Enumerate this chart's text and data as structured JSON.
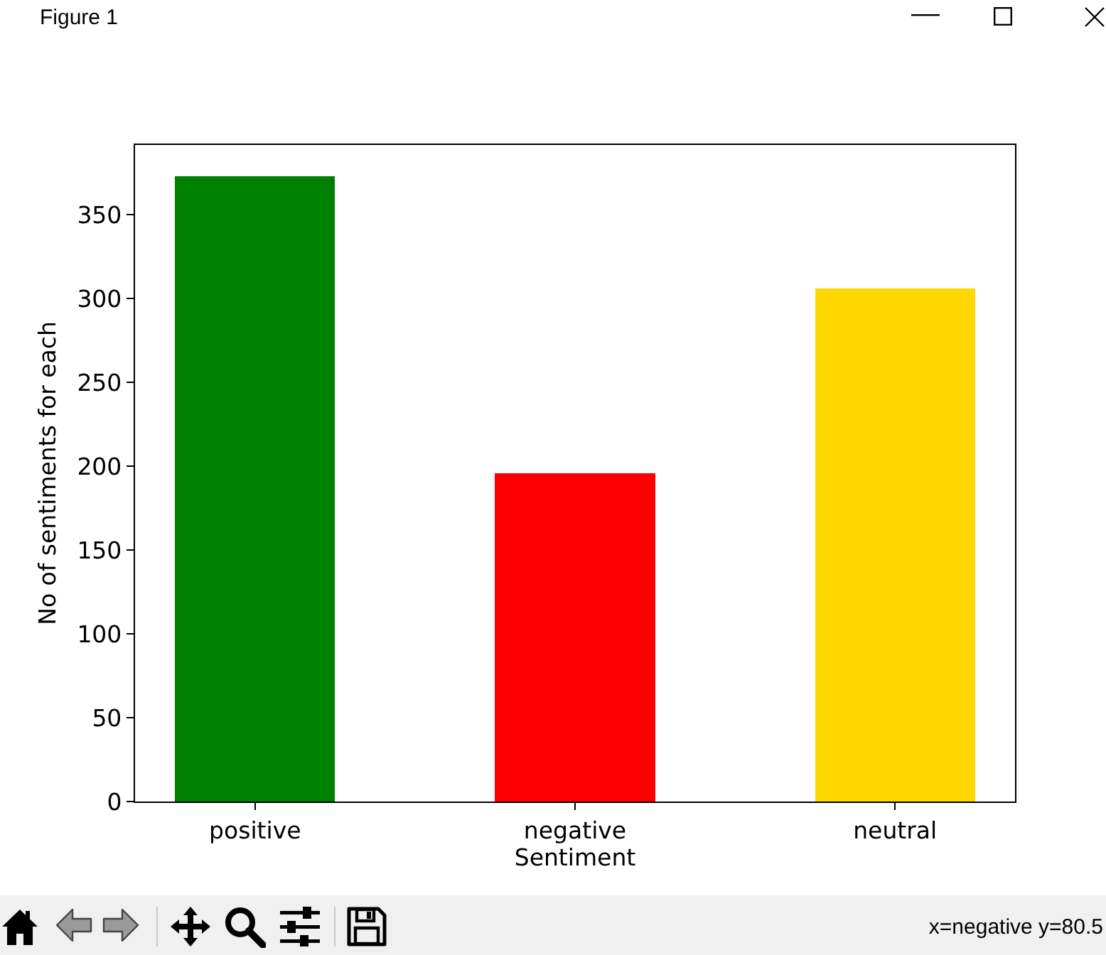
{
  "chart_data": {
    "type": "bar",
    "xlabel": "Sentiment",
    "ylabel": "No of sentiments for each",
    "categories": [
      "positive",
      "negative",
      "neutral"
    ],
    "values": [
      373,
      196,
      306
    ],
    "colors": [
      "#008000",
      "#ff0000",
      "#ffd700"
    ],
    "ylim": [
      0,
      391.65
    ],
    "yticks": [
      0,
      50,
      100,
      150,
      200,
      250,
      300,
      350
    ],
    "annotations": [
      "Figure 1",
      "x=negative y=80.5"
    ]
  }
}
